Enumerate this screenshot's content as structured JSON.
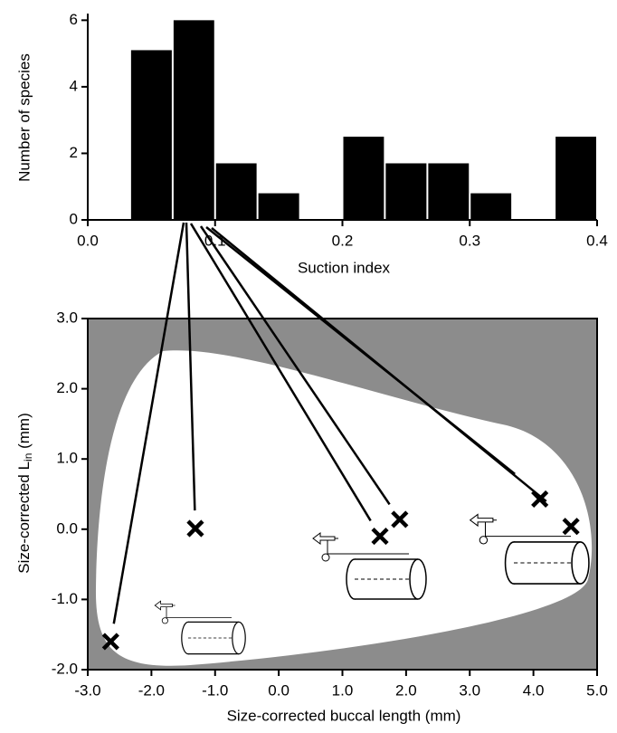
{
  "chart_data": [
    {
      "type": "histogram",
      "bins": [
        0.0333,
        0.0667,
        0.1,
        0.1333,
        0.1667,
        0.2,
        0.2333,
        0.2667,
        0.3,
        0.3333,
        0.3667,
        0.4
      ],
      "values": [
        5.1,
        6,
        1.7,
        0.8,
        0,
        2.5,
        1.7,
        1.7,
        0.8,
        0,
        2.5
      ],
      "color": "#000000",
      "xlabel": "Suction index",
      "ylabel": "Number of species",
      "xlim": [
        0,
        0.4
      ],
      "ylim": [
        0,
        6.2
      ],
      "xticks": [
        {
          "value": 0,
          "label": "0.0"
        },
        0.1,
        0.2,
        0.3,
        0.4
      ],
      "yticks": [
        0,
        2,
        4,
        6
      ]
    },
    {
      "type": "scatter",
      "x": [
        -2.64,
        -1.31,
        1.59,
        1.9,
        4.1,
        4.59
      ],
      "y": [
        -1.6,
        0.01,
        -0.1,
        0.14,
        0.43,
        0.04
      ],
      "color": "#000000",
      "background": "#8c8c8c",
      "xlabel": "Size-corrected buccal length (mm)",
      "ylabel": "Size-corrected L",
      "ylabel_subscript": "in",
      "ylabel_unit": " (mm)",
      "xlim": [
        -3,
        5
      ],
      "ylim": [
        -2,
        3
      ],
      "xticks": [
        {
          "value": -3,
          "label": "-3.0"
        },
        {
          "value": -2,
          "label": "-2.0"
        },
        {
          "value": -1,
          "label": "-1.0"
        },
        {
          "value": 0,
          "label": "0.0"
        },
        {
          "value": 1,
          "label": "1.0"
        },
        {
          "value": 2,
          "label": "2.0"
        },
        {
          "value": 3,
          "label": "3.0"
        },
        {
          "value": 4,
          "label": "4.0"
        },
        {
          "value": 5,
          "label": "5.0"
        }
      ],
      "yticks": [
        {
          "value": -2,
          "label": "-2.0"
        },
        {
          "value": -1,
          "label": "-1.0"
        },
        {
          "value": 0,
          "label": "0.0"
        },
        {
          "value": 1,
          "label": "1.0"
        },
        {
          "value": 2,
          "label": "2.0"
        },
        {
          "value": 3,
          "label": "3.0"
        }
      ]
    }
  ]
}
